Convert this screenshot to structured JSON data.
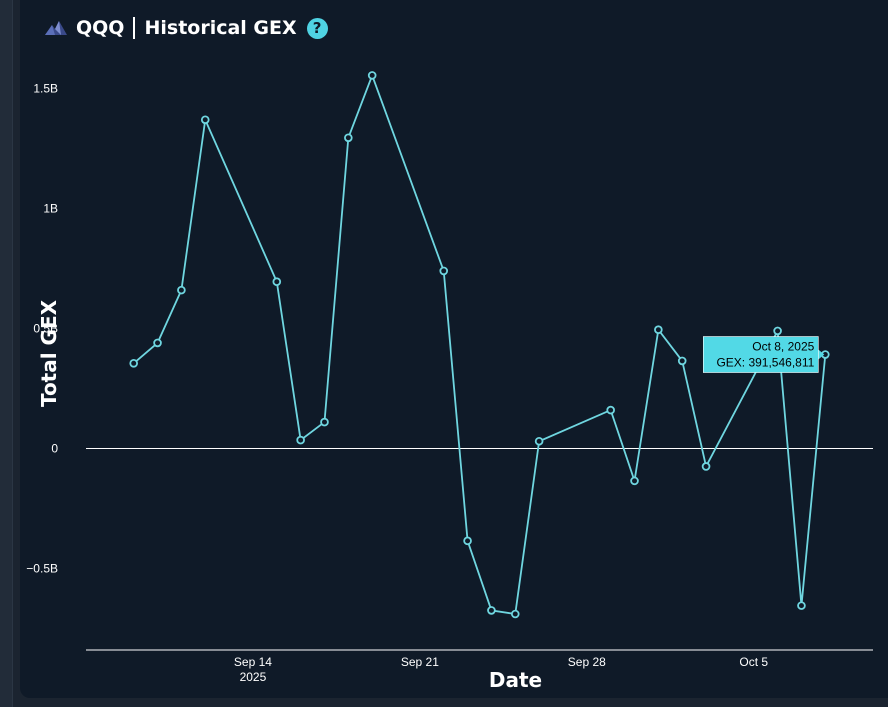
{
  "header": {
    "ticker": "QQQ",
    "title": "Historical GEX",
    "help_label": "?"
  },
  "colors": {
    "background": "#0f1a28",
    "line": "#6fd6e0",
    "tooltip_bg": "#52d9e6",
    "axis": "#ffffff"
  },
  "chart_data": {
    "type": "line",
    "xlabel": "Date",
    "ylabel": "Total GEX",
    "x_ticks": [
      {
        "date": "2025-09-14",
        "label": "Sep 14",
        "sublabel": "2025"
      },
      {
        "date": "2025-09-21",
        "label": "Sep 21",
        "sublabel": ""
      },
      {
        "date": "2025-09-28",
        "label": "Sep 28",
        "sublabel": ""
      },
      {
        "date": "2025-10-05",
        "label": "Oct 5",
        "sublabel": ""
      }
    ],
    "y_ticks": [
      {
        "value": -500000000,
        "label": "−0.5B"
      },
      {
        "value": 0,
        "label": "0"
      },
      {
        "value": 500000000,
        "label": "0.5B"
      },
      {
        "value": 1000000000,
        "label": "1B"
      },
      {
        "value": 1500000000,
        "label": "1.5B"
      }
    ],
    "xlim": [
      "2025-09-07",
      "2025-10-10"
    ],
    "ylim": [
      -840000000,
      1640000000
    ],
    "grid": false,
    "series": [
      {
        "points": [
          {
            "date": "2025-09-09",
            "value": 355000000
          },
          {
            "date": "2025-09-10",
            "value": 440000000
          },
          {
            "date": "2025-09-11",
            "value": 660000000
          },
          {
            "date": "2025-09-12",
            "value": 1370000000
          },
          {
            "date": "2025-09-15",
            "value": 695000000
          },
          {
            "date": "2025-09-16",
            "value": 35000000
          },
          {
            "date": "2025-09-17",
            "value": 110000000
          },
          {
            "date": "2025-09-18",
            "value": 1295000000
          },
          {
            "date": "2025-09-19",
            "value": 1555000000
          },
          {
            "date": "2025-09-22",
            "value": 740000000
          },
          {
            "date": "2025-09-23",
            "value": -385000000
          },
          {
            "date": "2025-09-24",
            "value": -675000000
          },
          {
            "date": "2025-09-25",
            "value": -690000000
          },
          {
            "date": "2025-09-26",
            "value": 30000000
          },
          {
            "date": "2025-09-29",
            "value": 160000000
          },
          {
            "date": "2025-09-30",
            "value": -135000000
          },
          {
            "date": "2025-10-01",
            "value": 495000000
          },
          {
            "date": "2025-10-02",
            "value": 365000000
          },
          {
            "date": "2025-10-03",
            "value": -75000000
          },
          {
            "date": "2025-10-06",
            "value": 490000000
          },
          {
            "date": "2025-10-07",
            "value": -655000000
          },
          {
            "date": "2025-10-08",
            "value": 391546811
          }
        ]
      }
    ],
    "tooltip": {
      "date": "2025-10-08",
      "line1": "Oct 8, 2025",
      "line2": "GEX: 391,546,811"
    }
  }
}
